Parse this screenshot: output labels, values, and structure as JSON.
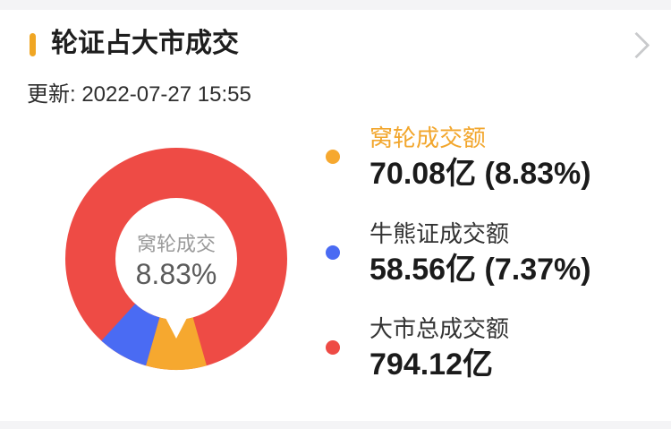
{
  "page": {
    "title": "轮证占大市成交",
    "updated": "更新: 2022-07-27 15:55"
  },
  "icons": {
    "title_chevron": "chevron-right-icon"
  },
  "colors": {
    "title_marker": "#F0A623",
    "accent_orange": "#F2A62C",
    "warrant_orange": "#F6A82F",
    "cbbc_blue": "#4A6BF3",
    "market_red": "#EE4B45",
    "center_label_gray": "#9A9A9A",
    "chevron_gray": "#C9CACC"
  },
  "chart_data": {
    "type": "pie",
    "donut": true,
    "title": "轮证占大市成交",
    "updated": "2022-07-27 15:55",
    "legend_position": "right",
    "center": {
      "label": "窝轮成交",
      "value": "8.83%"
    },
    "start_angle_deg": 164.1,
    "series": [
      {
        "name": "窝轮成交额",
        "value": 70.08,
        "unit": "亿",
        "percent": 8.83,
        "display": "70.08亿 (8.83%)",
        "color": "#F6A82F",
        "selected": true
      },
      {
        "name": "牛熊证成交额",
        "value": 58.56,
        "unit": "亿",
        "percent": 7.37,
        "display": "58.56亿 (7.37%)",
        "color": "#4A6BF3"
      },
      {
        "name": "大市总成交额",
        "value": 794.12,
        "unit": "亿",
        "percent": null,
        "display": "794.12亿",
        "color": "#EE4B45",
        "is_total_remainder": true
      }
    ]
  }
}
